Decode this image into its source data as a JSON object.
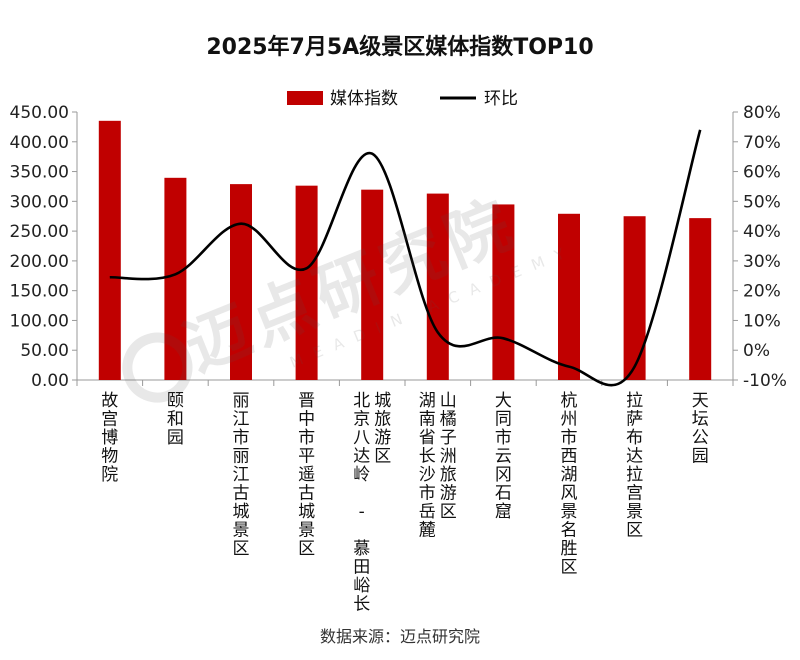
{
  "chart_data": {
    "type": "bar",
    "title": "2025年7月5A级景区媒体指数TOP10",
    "categories": [
      "故宫博物院",
      "颐和园",
      "丽江市丽江古城景区",
      "晋中市平遥古城景区",
      "北京八达岭 - 慕田峪长城旅游区",
      "湖南省长沙市岳麓山橘子洲旅游区",
      "大同市云冈石窟",
      "杭州市西湖风景名胜区",
      "拉萨布达拉宫景区",
      "天坛公园"
    ],
    "category_lines": [
      [
        "故宫博物院"
      ],
      [
        "颐和园"
      ],
      [
        "丽江市丽江古城景区"
      ],
      [
        "晋中市平遥古城景区"
      ],
      [
        "北京八达岭 - 慕田峪长",
        "城旅游区"
      ],
      [
        "湖南省长沙市岳麓",
        "山橘子洲旅游区"
      ],
      [
        "大同市云冈石窟"
      ],
      [
        "杭州市西湖风景名胜区"
      ],
      [
        "拉萨布达拉宫景区"
      ],
      [
        "天坛公园"
      ]
    ],
    "series": [
      {
        "name": "媒体指数",
        "type": "bar",
        "axis": "left",
        "color": "#c00000",
        "values": [
          435.2,
          339.5,
          328.9,
          326.3,
          319.6,
          313.0,
          294.8,
          279.1,
          275.0,
          271.8
        ]
      },
      {
        "name": "环比",
        "type": "line",
        "axis": "right",
        "color": "#000000",
        "values": [
          24.5,
          25.5,
          42.5,
          27.5,
          66.0,
          6.0,
          4.0,
          -5.5,
          -5.5,
          74.0
        ]
      }
    ],
    "y_left": {
      "ylim": [
        0,
        450
      ],
      "ticks": [
        0,
        50,
        100,
        150,
        200,
        250,
        300,
        350,
        400,
        450
      ],
      "tick_labels": [
        "0.00",
        "50.00",
        "100.00",
        "150.00",
        "200.00",
        "250.00",
        "300.00",
        "350.00",
        "400.00",
        "450.00"
      ]
    },
    "y_right": {
      "ylim": [
        -10,
        80
      ],
      "ticks": [
        -10,
        0,
        10,
        20,
        30,
        40,
        50,
        60,
        70,
        80
      ],
      "tick_labels": [
        "-10%",
        "0%",
        "10%",
        "20%",
        "30%",
        "40%",
        "50%",
        "60%",
        "70%",
        "80%"
      ]
    },
    "legend": {
      "position": "top-center",
      "entries": [
        "媒体指数",
        "环比"
      ]
    },
    "grid": false
  },
  "source_note": "数据来源：迈点研究院",
  "watermark": {
    "main": "迈点研究院",
    "sub": "MEADIN ACADEMY"
  }
}
